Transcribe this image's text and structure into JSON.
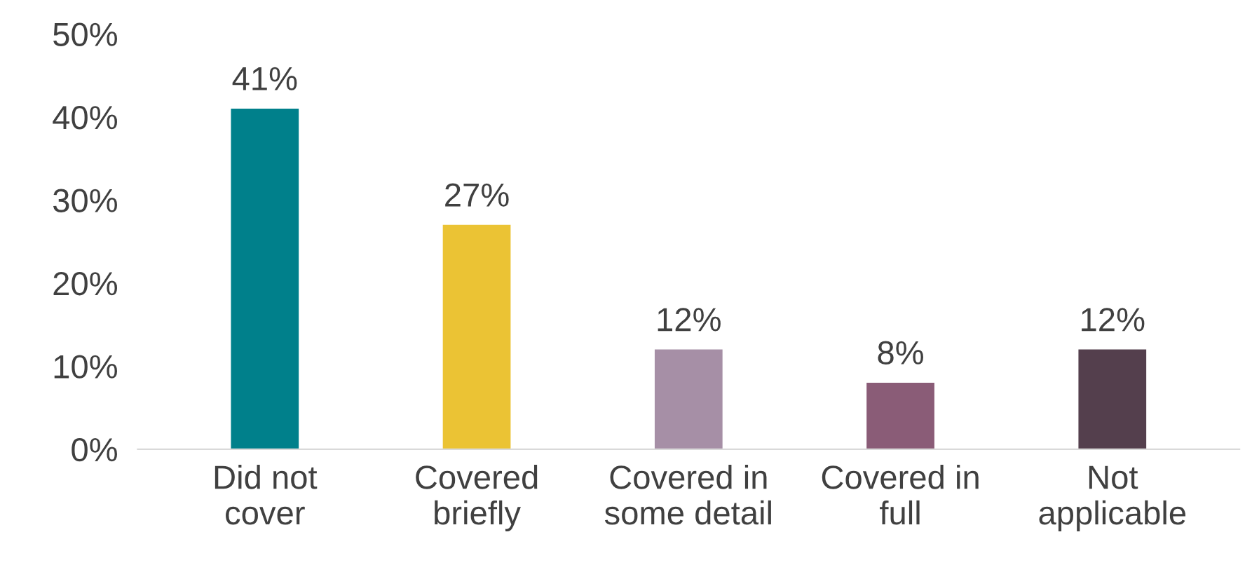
{
  "chart_data": {
    "type": "bar",
    "categories": [
      "Did not\ncover",
      "Covered\nbriefly",
      "Covered in\nsome detail",
      "Covered in\nfull",
      "Not\napplicable"
    ],
    "values": [
      41,
      27,
      12,
      8,
      12
    ],
    "colors": [
      "#00808b",
      "#ebc334",
      "#a68fa6",
      "#8a5c77",
      "#543f4d"
    ],
    "ylim": [
      0,
      50
    ],
    "yticks": [
      {
        "value": 0,
        "label": "0%"
      },
      {
        "value": 10,
        "label": "10%"
      },
      {
        "value": 20,
        "label": "20%"
      },
      {
        "value": 30,
        "label": "30%"
      },
      {
        "value": 40,
        "label": "40%"
      },
      {
        "value": 50,
        "label": "50%"
      }
    ],
    "value_labels": [
      "41%",
      "27%",
      "12%",
      "8%",
      "12%"
    ],
    "grid": false,
    "legend": false
  }
}
